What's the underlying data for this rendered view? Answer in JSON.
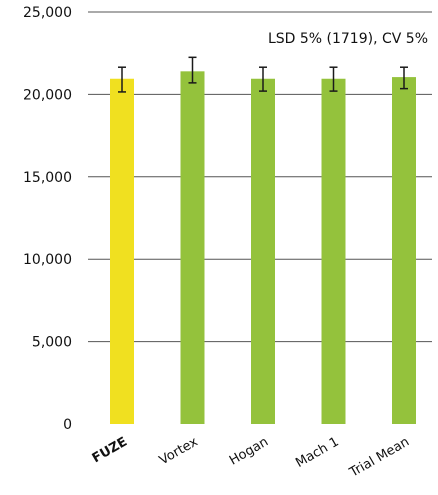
{
  "chart_data": {
    "type": "bar",
    "title": "",
    "xlabel": "",
    "ylabel": "",
    "annotation": "LSD 5% (1719), CV 5%",
    "categories": [
      "FUZE",
      "Vortex",
      "Hogan",
      "Mach 1",
      "Trial Mean"
    ],
    "values": [
      20950,
      21400,
      20950,
      20950,
      21050
    ],
    "error_bars": [
      [
        20150,
        21650
      ],
      [
        20700,
        22250
      ],
      [
        20200,
        21650
      ],
      [
        20200,
        21650
      ],
      [
        20350,
        21650
      ]
    ],
    "bar_colors": [
      "#f0e020",
      "#94c23c",
      "#94c23c",
      "#94c23c",
      "#94c23c"
    ],
    "highlight_category": "FUZE",
    "ylim": [
      0,
      25000
    ],
    "yticks": [
      0,
      5000,
      10000,
      15000,
      20000,
      25000
    ],
    "ytick_labels": [
      "0",
      "5,000",
      "10,000",
      "15,000",
      "20,000",
      "25,000"
    ],
    "grid": "horizontal",
    "legend": "none"
  }
}
